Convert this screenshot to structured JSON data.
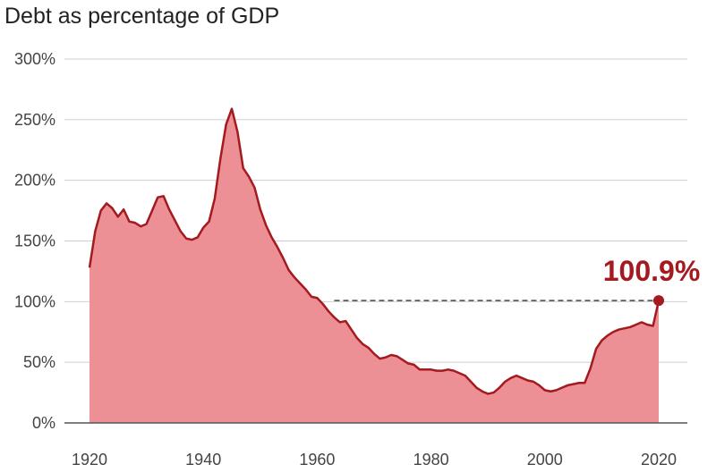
{
  "chart_data": {
    "type": "area",
    "title": "Debt as percentage of GDP",
    "xlabel": "",
    "ylabel": "",
    "xlim": [
      1920,
      2020
    ],
    "ylim": [
      0,
      300
    ],
    "grid": true,
    "y_ticks": [
      "0%",
      "50%",
      "100%",
      "150%",
      "200%",
      "250%",
      "300%"
    ],
    "x_ticks": [
      "1920",
      "1940",
      "1960",
      "1980",
      "2000",
      "2020"
    ],
    "annotation": {
      "label": "100.9%",
      "x": 2020,
      "y": 100.9
    },
    "reference_line": {
      "y": 100.9,
      "x_start": 1963,
      "x_end": 2020
    },
    "colors": {
      "line": "#a31a1f",
      "area": "#ec9096"
    },
    "series": [
      {
        "x": [
          1920,
          1921,
          1922,
          1923,
          1924,
          1925,
          1926,
          1927,
          1928,
          1929,
          1930,
          1931,
          1932,
          1933,
          1934,
          1935,
          1936,
          1937,
          1938,
          1939,
          1940,
          1941,
          1942,
          1943,
          1944,
          1945,
          1946,
          1947,
          1948,
          1949,
          1950,
          1951,
          1952,
          1953,
          1954,
          1955,
          1956,
          1957,
          1958,
          1959,
          1960,
          1961,
          1962,
          1963,
          1964,
          1965,
          1966,
          1967,
          1968,
          1969,
          1970,
          1971,
          1972,
          1973,
          1974,
          1975,
          1976,
          1977,
          1978,
          1979,
          1980,
          1981,
          1982,
          1983,
          1984,
          1985,
          1986,
          1987,
          1988,
          1989,
          1990,
          1991,
          1992,
          1993,
          1994,
          1995,
          1996,
          1997,
          1998,
          1999,
          2000,
          2001,
          2002,
          2003,
          2004,
          2005,
          2006,
          2007,
          2008,
          2009,
          2010,
          2011,
          2012,
          2013,
          2014,
          2015,
          2016,
          2017,
          2018,
          2019,
          2020
        ],
        "values": [
          128,
          158,
          175,
          181,
          177,
          170,
          176,
          166,
          165,
          162,
          164,
          175,
          186,
          187,
          176,
          167,
          158,
          152,
          151,
          153,
          161,
          166,
          185,
          218,
          246,
          259,
          240,
          210,
          203,
          194,
          176,
          163,
          153,
          145,
          136,
          126,
          120,
          115,
          110,
          104,
          103,
          98,
          92,
          87,
          83,
          84,
          77,
          70,
          65,
          62,
          57,
          53,
          54,
          56,
          55,
          52,
          49,
          48,
          44,
          44,
          44,
          43,
          43,
          44,
          43,
          41,
          39,
          34,
          29,
          26,
          24,
          25,
          29,
          34,
          37,
          39,
          37,
          35,
          34,
          31,
          27,
          26,
          27,
          29,
          31,
          32,
          33,
          33,
          45,
          61,
          68,
          72,
          75,
          77,
          78,
          79,
          81,
          83,
          81,
          80,
          100.9
        ]
      }
    ]
  }
}
